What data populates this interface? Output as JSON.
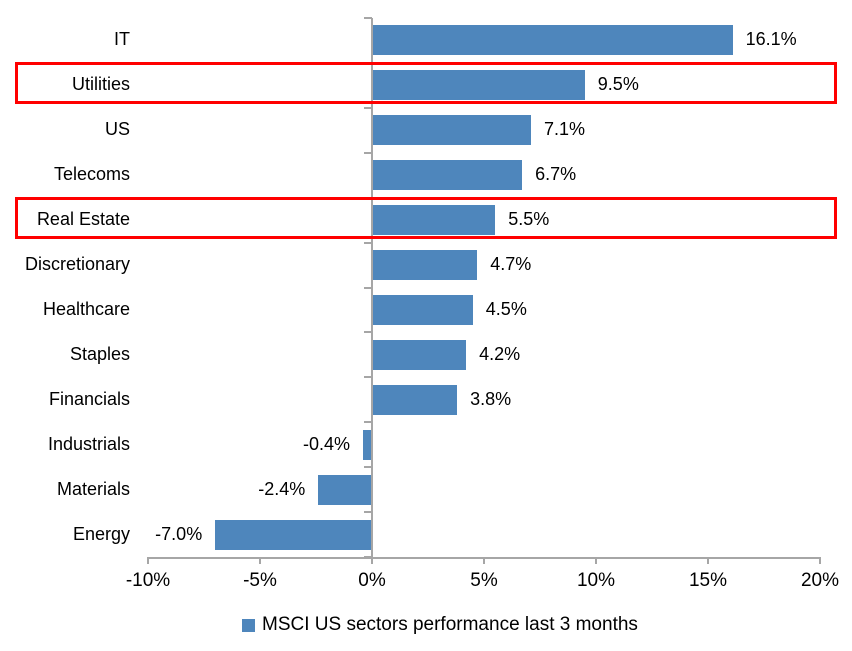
{
  "chart_data": {
    "type": "bar",
    "orientation": "horizontal",
    "title": "",
    "xlabel": "",
    "ylabel": "",
    "categories": [
      "IT",
      "Utilities",
      "US",
      "Telecoms",
      "Real Estate",
      "Discretionary",
      "Healthcare",
      "Staples",
      "Financials",
      "Industrials",
      "Materials",
      "Energy"
    ],
    "values": [
      16.1,
      9.5,
      7.1,
      6.7,
      5.5,
      4.7,
      4.5,
      4.2,
      3.8,
      -0.4,
      -2.4,
      -7.0
    ],
    "value_labels": [
      "16.1%",
      "9.5%",
      "7.1%",
      "6.7%",
      "5.5%",
      "4.7%",
      "4.5%",
      "4.2%",
      "3.8%",
      "-0.4%",
      "-2.4%",
      "-7.0%"
    ],
    "x_ticks": [
      {
        "value": -10,
        "label": "-10%"
      },
      {
        "value": -5,
        "label": "-5%"
      },
      {
        "value": 0,
        "label": "0%"
      },
      {
        "value": 5,
        "label": "5%"
      },
      {
        "value": 10,
        "label": "10%"
      },
      {
        "value": 15,
        "label": "15%"
      },
      {
        "value": 20,
        "label": "20%"
      }
    ],
    "xlim": [
      -10,
      20
    ],
    "grid": false,
    "legend_position": "bottom",
    "legend": "MSCI US sectors performance last 3 months",
    "highlighted_categories": [
      "Utilities",
      "Real Estate"
    ],
    "colors": {
      "bar": "#4E86BC",
      "highlight_border": "#FF0000",
      "axis": "#A6A6A6",
      "text": "#000000"
    }
  }
}
